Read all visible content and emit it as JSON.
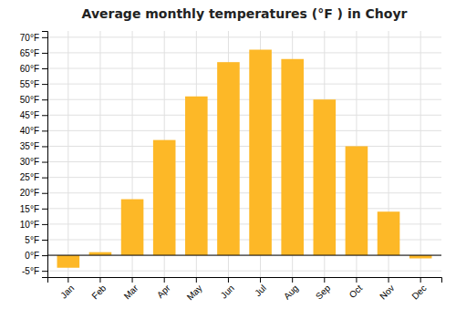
{
  "chart_data": {
    "type": "bar",
    "title": "Average monthly temperatures (°F ) in Choyr",
    "categories": [
      "Jan",
      "Feb",
      "Mar",
      "Apr",
      "May",
      "Jun",
      "Jul",
      "Aug",
      "Sep",
      "Oct",
      "Nov",
      "Dec"
    ],
    "values": [
      -4,
      1,
      18,
      37,
      51,
      62,
      66,
      63,
      50,
      35,
      14,
      -1
    ],
    "color": "#FDB827",
    "ylim": [
      -7,
      72
    ],
    "yticks": [
      {
        "value": -5,
        "label": "-5°F"
      },
      {
        "value": 0,
        "label": "0°F"
      },
      {
        "value": 5,
        "label": "5°F"
      },
      {
        "value": 10,
        "label": "10°F"
      },
      {
        "value": 15,
        "label": "15°F"
      },
      {
        "value": 20,
        "label": "20°F"
      },
      {
        "value": 25,
        "label": "25°F"
      },
      {
        "value": 30,
        "label": "30°F"
      },
      {
        "value": 35,
        "label": "35°F"
      },
      {
        "value": 40,
        "label": "40°F"
      },
      {
        "value": 45,
        "label": "45°F"
      },
      {
        "value": 50,
        "label": "50°F"
      },
      {
        "value": 55,
        "label": "55°F"
      },
      {
        "value": 60,
        "label": "60°F"
      },
      {
        "value": 65,
        "label": "65°F"
      },
      {
        "value": 70,
        "label": "70°F"
      }
    ],
    "grid": true
  }
}
